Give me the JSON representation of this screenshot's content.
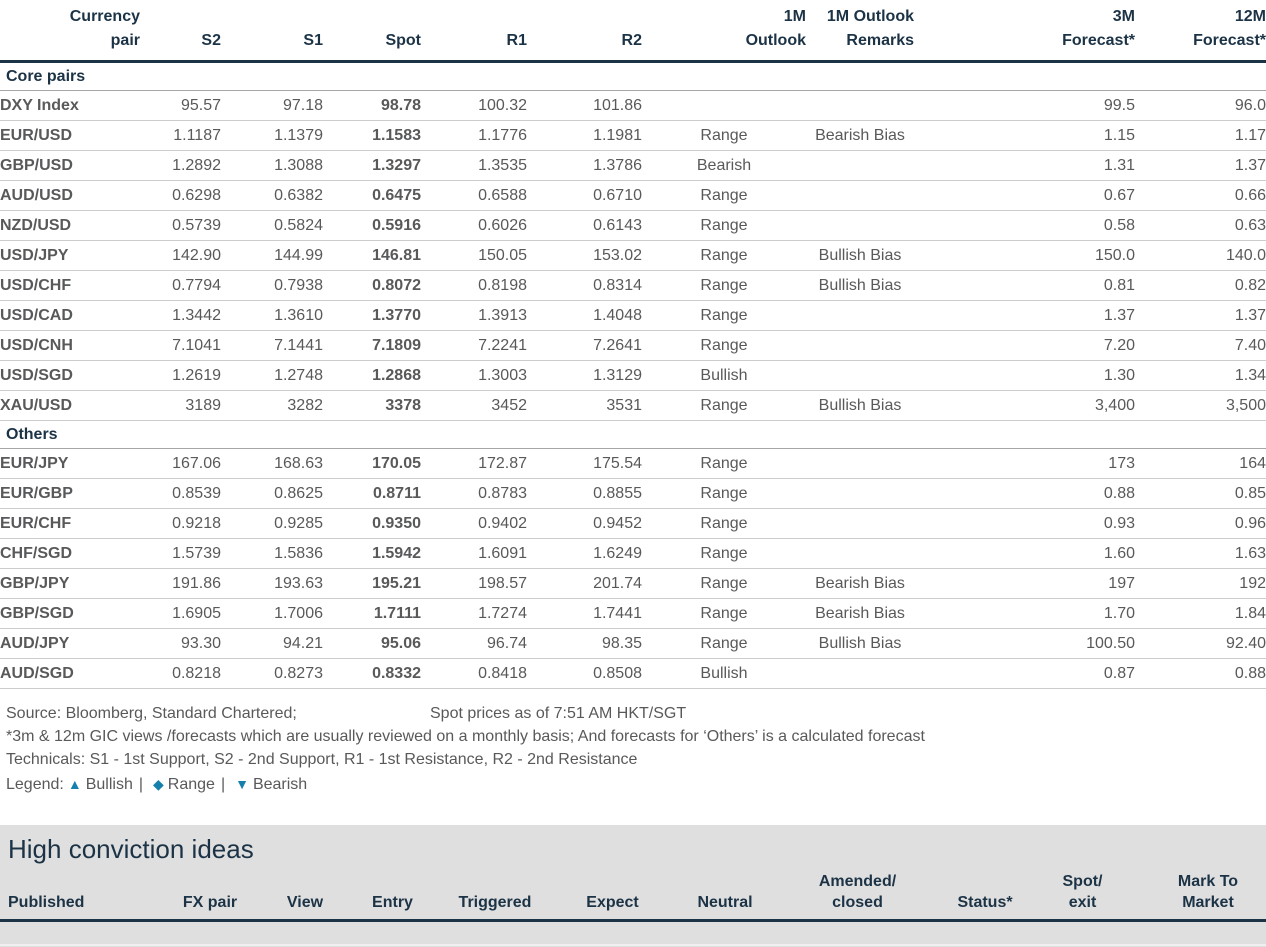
{
  "fx_table": {
    "headers": [
      {
        "key": "pair",
        "lines": [
          "Currency",
          "pair"
        ]
      },
      {
        "key": "s2",
        "lines": [
          "S2"
        ]
      },
      {
        "key": "s1",
        "lines": [
          "S1"
        ]
      },
      {
        "key": "spot",
        "lines": [
          "Spot"
        ]
      },
      {
        "key": "r1",
        "lines": [
          "R1"
        ]
      },
      {
        "key": "r2",
        "lines": [
          "R2"
        ]
      },
      {
        "key": "outlook",
        "lines": [
          "1M",
          "Outlook"
        ]
      },
      {
        "key": "remarks",
        "lines": [
          "1M Outlook",
          "Remarks"
        ]
      },
      {
        "key": "f3m",
        "lines": [
          "3M",
          "Forecast*"
        ]
      },
      {
        "key": "f12m",
        "lines": [
          "12M",
          "Forecast*"
        ]
      }
    ],
    "sections": [
      {
        "label": "Core pairs",
        "rows": [
          {
            "pair": "DXY Index",
            "s2": "95.57",
            "s1": "97.18",
            "spot": "98.78",
            "r1": "100.32",
            "r2": "101.86",
            "outlook": "",
            "remarks": "",
            "f3m": "99.5",
            "f12m": "96.0"
          },
          {
            "pair": "EUR/USD",
            "s2": "1.1187",
            "s1": "1.1379",
            "spot": "1.1583",
            "r1": "1.1776",
            "r2": "1.1981",
            "outlook": "Range",
            "remarks": "Bearish Bias",
            "f3m": "1.15",
            "f12m": "1.17"
          },
          {
            "pair": "GBP/USD",
            "s2": "1.2892",
            "s1": "1.3088",
            "spot": "1.3297",
            "r1": "1.3535",
            "r2": "1.3786",
            "outlook": "Bearish",
            "remarks": "",
            "f3m": "1.31",
            "f12m": "1.37"
          },
          {
            "pair": "AUD/USD",
            "s2": "0.6298",
            "s1": "0.6382",
            "spot": "0.6475",
            "r1": "0.6588",
            "r2": "0.6710",
            "outlook": "Range",
            "remarks": "",
            "f3m": "0.67",
            "f12m": "0.66"
          },
          {
            "pair": "NZD/USD",
            "s2": "0.5739",
            "s1": "0.5824",
            "spot": "0.5916",
            "r1": "0.6026",
            "r2": "0.6143",
            "outlook": "Range",
            "remarks": "",
            "f3m": "0.58",
            "f12m": "0.63"
          },
          {
            "pair": "USD/JPY",
            "s2": "142.90",
            "s1": "144.99",
            "spot": "146.81",
            "r1": "150.05",
            "r2": "153.02",
            "outlook": "Range",
            "remarks": "Bullish Bias",
            "f3m": "150.0",
            "f12m": "140.0"
          },
          {
            "pair": "USD/CHF",
            "s2": "0.7794",
            "s1": "0.7938",
            "spot": "0.8072",
            "r1": "0.8198",
            "r2": "0.8314",
            "outlook": "Range",
            "remarks": "Bullish Bias",
            "f3m": "0.81",
            "f12m": "0.82"
          },
          {
            "pair": "USD/CAD",
            "s2": "1.3442",
            "s1": "1.3610",
            "spot": "1.3770",
            "r1": "1.3913",
            "r2": "1.4048",
            "outlook": "Range",
            "remarks": "",
            "f3m": "1.37",
            "f12m": "1.37"
          },
          {
            "pair": "USD/CNH",
            "s2": "7.1041",
            "s1": "7.1441",
            "spot": "7.1809",
            "r1": "7.2241",
            "r2": "7.2641",
            "outlook": "Range",
            "remarks": "",
            "f3m": "7.20",
            "f12m": "7.40"
          },
          {
            "pair": "USD/SGD",
            "s2": "1.2619",
            "s1": "1.2748",
            "spot": "1.2868",
            "r1": "1.3003",
            "r2": "1.3129",
            "outlook": "Bullish",
            "remarks": "",
            "f3m": "1.30",
            "f12m": "1.34"
          },
          {
            "pair": "XAU/USD",
            "s2": "3189",
            "s1": "3282",
            "spot": "3378",
            "r1": "3452",
            "r2": "3531",
            "outlook": "Range",
            "remarks": "Bullish Bias",
            "f3m": "3,400",
            "f12m": "3,500"
          }
        ]
      },
      {
        "label": "Others",
        "rows": [
          {
            "pair": "EUR/JPY",
            "s2": "167.06",
            "s1": "168.63",
            "spot": "170.05",
            "r1": "172.87",
            "r2": "175.54",
            "outlook": "Range",
            "remarks": "",
            "f3m": "173",
            "f12m": "164"
          },
          {
            "pair": "EUR/GBP",
            "s2": "0.8539",
            "s1": "0.8625",
            "spot": "0.8711",
            "r1": "0.8783",
            "r2": "0.8855",
            "outlook": "Range",
            "remarks": "",
            "f3m": "0.88",
            "f12m": "0.85"
          },
          {
            "pair": "EUR/CHF",
            "s2": "0.9218",
            "s1": "0.9285",
            "spot": "0.9350",
            "r1": "0.9402",
            "r2": "0.9452",
            "outlook": "Range",
            "remarks": "",
            "f3m": "0.93",
            "f12m": "0.96"
          },
          {
            "pair": "CHF/SGD",
            "s2": "1.5739",
            "s1": "1.5836",
            "spot": "1.5942",
            "r1": "1.6091",
            "r2": "1.6249",
            "outlook": "Range",
            "remarks": "",
            "f3m": "1.60",
            "f12m": "1.63"
          },
          {
            "pair": "GBP/JPY",
            "s2": "191.86",
            "s1": "193.63",
            "spot": "195.21",
            "r1": "198.57",
            "r2": "201.74",
            "outlook": "Range",
            "remarks": "Bearish Bias",
            "f3m": "197",
            "f12m": "192"
          },
          {
            "pair": "GBP/SGD",
            "s2": "1.6905",
            "s1": "1.7006",
            "spot": "1.7111",
            "r1": "1.7274",
            "r2": "1.7441",
            "outlook": "Range",
            "remarks": "Bearish Bias",
            "f3m": "1.70",
            "f12m": "1.84"
          },
          {
            "pair": "AUD/JPY",
            "s2": "93.30",
            "s1": "94.21",
            "spot": "95.06",
            "r1": "96.74",
            "r2": "98.35",
            "outlook": "Range",
            "remarks": "Bullish Bias",
            "f3m": "100.50",
            "f12m": "92.40"
          },
          {
            "pair": "AUD/SGD",
            "s2": "0.8218",
            "s1": "0.8273",
            "spot": "0.8332",
            "r1": "0.8418",
            "r2": "0.8508",
            "outlook": "Bullish",
            "remarks": "",
            "f3m": "0.87",
            "f12m": "0.88"
          }
        ]
      }
    ]
  },
  "footnotes": {
    "source": "Source: Bloomberg, Standard Chartered;",
    "spot_asof": "Spot prices as of 7:51 AM HKT/SGT",
    "forecast_note": "*3m & 12m GIC views /forecasts which are usually reviewed on a monthly basis; And forecasts for ‘Others’ is a calculated forecast",
    "technicals": "Technicals: S1 - 1st Support, S2 - 2nd Support, R1 - 1st Resistance, R2 - 2nd Resistance",
    "legend": {
      "label": "Legend:",
      "separator": "|",
      "items": [
        {
          "icon": "triangle-up-icon",
          "glyph": "▲",
          "label": "Bullish"
        },
        {
          "icon": "diamond-icon",
          "glyph": "◆",
          "label": "Range"
        },
        {
          "icon": "triangle-down-icon",
          "glyph": "▼",
          "label": "Bearish"
        }
      ]
    }
  },
  "high_conviction": {
    "title": "High conviction ideas",
    "headers": [
      [
        "Published"
      ],
      [
        "FX pair"
      ],
      [
        "View"
      ],
      [
        "Entry"
      ],
      [
        "Triggered"
      ],
      [
        "Expect"
      ],
      [
        "Neutral"
      ],
      [
        "Amended/",
        "closed"
      ],
      [
        "Status*"
      ],
      [
        "Spot/",
        "exit"
      ],
      [
        "Mark To",
        "Market"
      ]
    ]
  },
  "colors": {
    "header_navy": "#1c3346",
    "body_gray": "#58595b",
    "outlook_range": "#f7a600",
    "outlook_bearish": "#f40000",
    "outlook_bullish": "#1e8a1e",
    "legend_blue": "#1680ad",
    "panel_gray": "#dfdfdf"
  }
}
